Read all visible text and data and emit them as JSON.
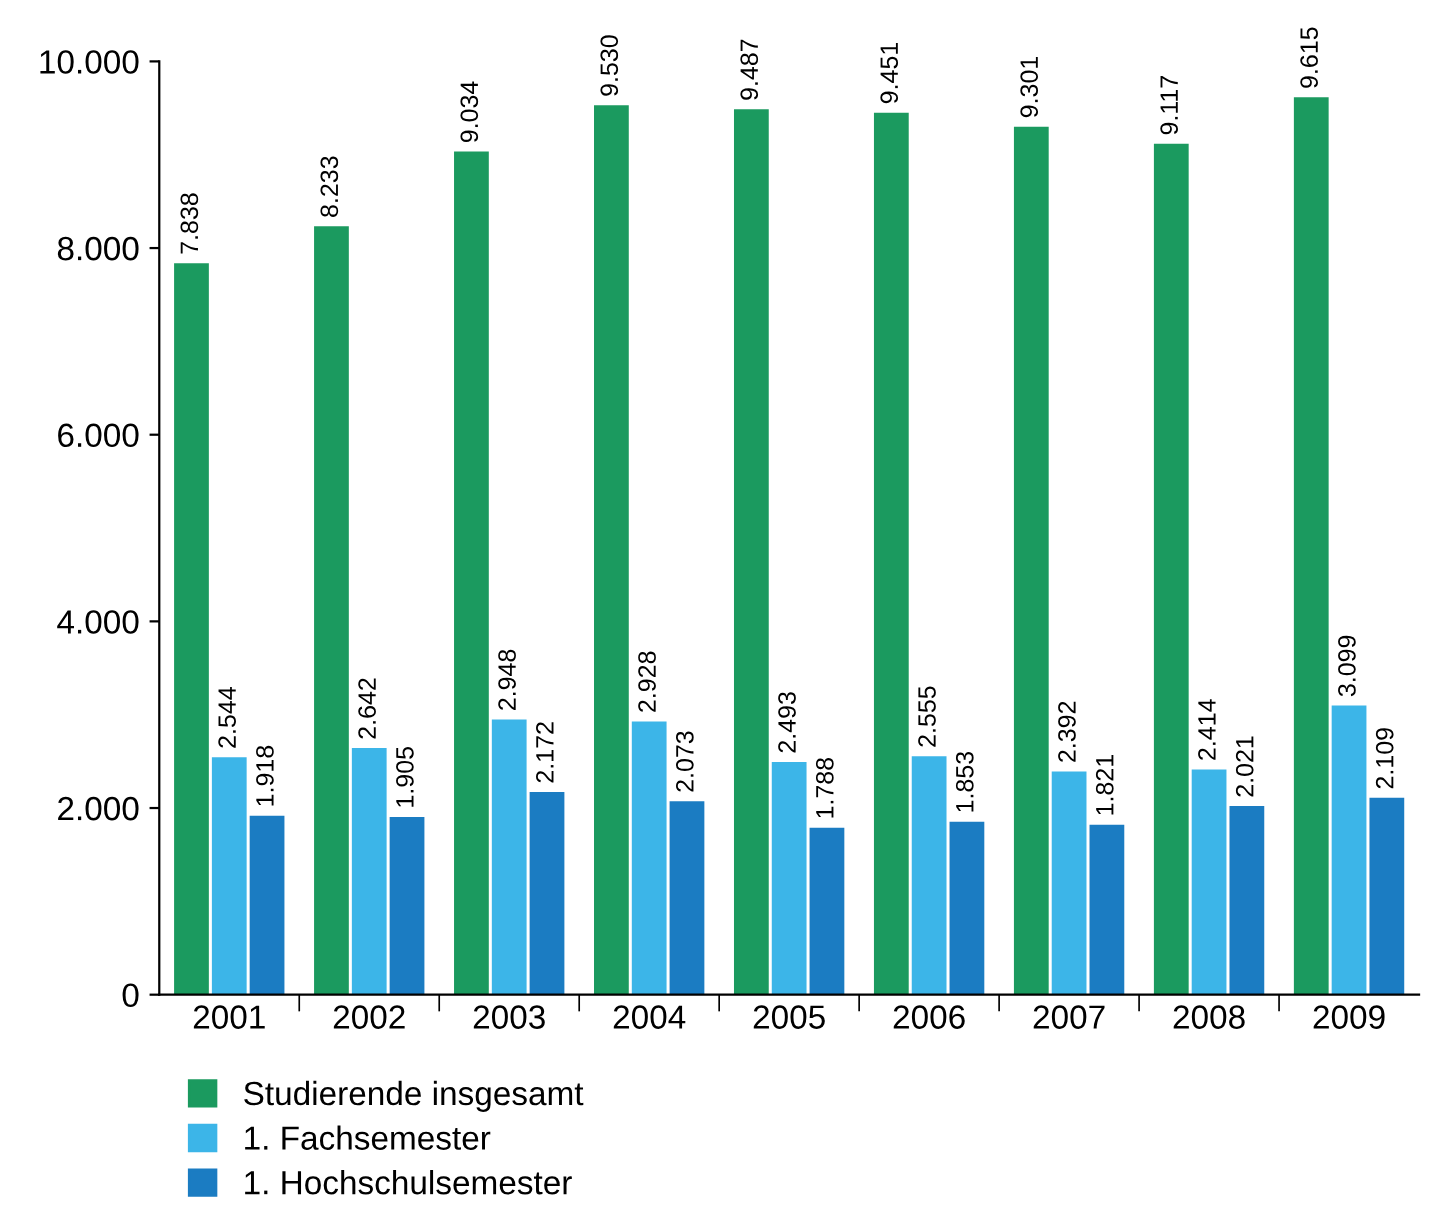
{
  "chart_data": {
    "type": "bar",
    "categories": [
      "2001",
      "2002",
      "2003",
      "2004",
      "2005",
      "2006",
      "2007",
      "2008",
      "2009"
    ],
    "series": [
      {
        "name": "Studierende insgesamt",
        "color": "#1b9a5f",
        "values": [
          7838,
          8233,
          9034,
          9530,
          9487,
          9451,
          9301,
          9117,
          9615
        ],
        "value_labels": [
          "7.838",
          "8.233",
          "9.034",
          "9.530",
          "9.487",
          "9.451",
          "9.301",
          "9.117",
          "9.615"
        ]
      },
      {
        "name": "1. Fachsemester",
        "color": "#3cb5e8",
        "values": [
          2544,
          2642,
          2948,
          2928,
          2493,
          2555,
          2392,
          2414,
          3099
        ],
        "value_labels": [
          "2.544",
          "2.642",
          "2.948",
          "2.928",
          "2.493",
          "2.555",
          "2.392",
          "2.414",
          "3.099"
        ]
      },
      {
        "name": "1. Hochschulsemester",
        "color": "#1b7cc2",
        "values": [
          1918,
          1905,
          2172,
          2073,
          1788,
          1853,
          1821,
          2021,
          2109
        ],
        "value_labels": [
          "1.918",
          "1.905",
          "2.172",
          "2.073",
          "1.788",
          "1.853",
          "1.821",
          "2.021",
          "2.109"
        ]
      }
    ],
    "ylim": [
      0,
      10000
    ],
    "yticks": [
      {
        "value": 0,
        "label": "0"
      },
      {
        "value": 2000,
        "label": "2.000"
      },
      {
        "value": 4000,
        "label": "4.000"
      },
      {
        "value": 6000,
        "label": "6.000"
      },
      {
        "value": 8000,
        "label": "8.000"
      },
      {
        "value": 10000,
        "label": "10.000"
      }
    ],
    "grid": false,
    "legend": "bottom"
  }
}
